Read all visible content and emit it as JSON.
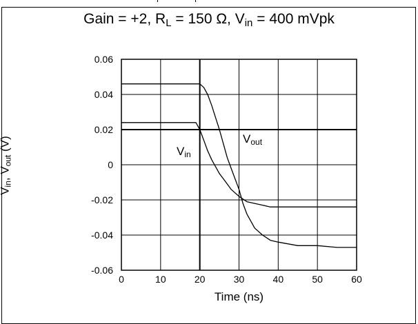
{
  "chart_data": {
    "type": "line",
    "title": {
      "pre": "Gain = +2, R",
      "sub1": "L",
      "mid": " = 150 Ω, V",
      "sub2": "in",
      "post": " = 400 mVpk"
    },
    "xlabel": "Time (ns)",
    "ylabel": {
      "v1": "V",
      "s1": "in",
      "sep": ", V",
      "s2": "out",
      "unit": " (V)"
    },
    "xlim": [
      0,
      60
    ],
    "ylim": [
      -0.06,
      0.06
    ],
    "x_ticks": [
      "0",
      "10",
      "20",
      "30",
      "40",
      "50",
      "60"
    ],
    "y_ticks": [
      "0.06",
      "0.04",
      "0.02",
      "0",
      "-0.02",
      "-0.04",
      "-0.06"
    ],
    "grid": true,
    "series": [
      {
        "name": "V_out",
        "label_main": "V",
        "label_sub": "out",
        "x": [
          0,
          5,
          10,
          15,
          20,
          21,
          22,
          23,
          24,
          25,
          26,
          27,
          28,
          29,
          30,
          31,
          32,
          34,
          36,
          38,
          40,
          45,
          50,
          55,
          60
        ],
        "y": [
          0.046,
          0.046,
          0.046,
          0.046,
          0.046,
          0.044,
          0.04,
          0.034,
          0.027,
          0.02,
          0.012,
          0.004,
          -0.002,
          -0.008,
          -0.014,
          -0.022,
          -0.028,
          -0.036,
          -0.04,
          -0.043,
          -0.044,
          -0.046,
          -0.046,
          -0.047,
          -0.047
        ]
      },
      {
        "name": "V_in",
        "label_main": "V",
        "label_sub": "in",
        "x": [
          0,
          5,
          10,
          15,
          19,
          20,
          21,
          22,
          23,
          24,
          25,
          26,
          27,
          28,
          29,
          30,
          32,
          34,
          36,
          38,
          40,
          45,
          50,
          55,
          60
        ],
        "y": [
          0.024,
          0.024,
          0.024,
          0.024,
          0.024,
          0.02,
          0.014,
          0.008,
          0.003,
          -0.001,
          -0.005,
          -0.008,
          -0.011,
          -0.014,
          -0.016,
          -0.018,
          -0.021,
          -0.022,
          -0.023,
          -0.024,
          -0.024,
          -0.024,
          -0.024,
          -0.024,
          -0.024
        ]
      }
    ]
  }
}
